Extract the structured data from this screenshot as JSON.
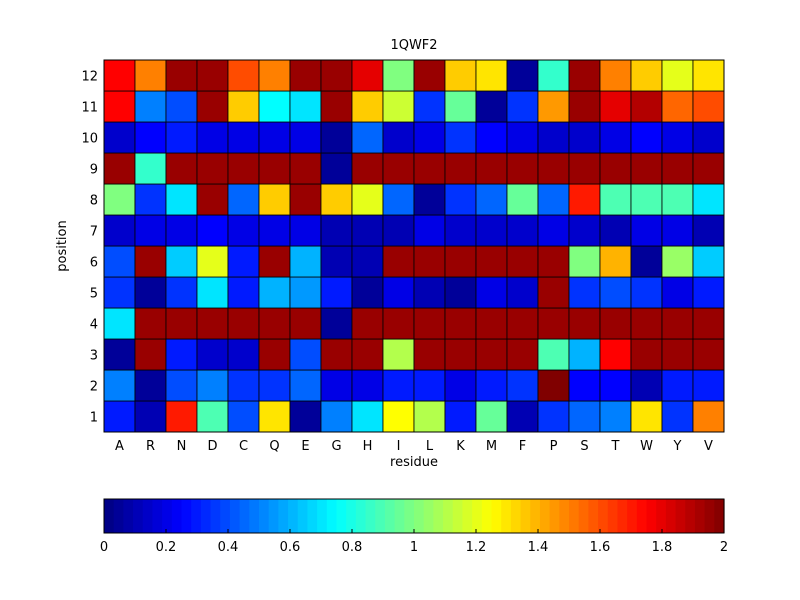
{
  "chart_data": {
    "type": "heatmap",
    "title": "1QWF2",
    "xlabel": "residue",
    "ylabel": "position",
    "x_categories": [
      "A",
      "R",
      "N",
      "D",
      "C",
      "Q",
      "E",
      "G",
      "H",
      "I",
      "L",
      "K",
      "M",
      "F",
      "P",
      "S",
      "T",
      "W",
      "Y",
      "V"
    ],
    "y_categories": [
      "1",
      "2",
      "3",
      "4",
      "5",
      "6",
      "7",
      "8",
      "9",
      "10",
      "11",
      "12"
    ],
    "colorbar": {
      "range": [
        0,
        2
      ],
      "ticks": [
        "0",
        "0.2",
        "0.4",
        "0.6",
        "0.8",
        "1",
        "1.2",
        "1.4",
        "1.6",
        "1.8",
        "2"
      ]
    },
    "colormap": "jet",
    "values": [
      [
        0.3,
        0.1,
        1.7,
        0.9,
        0.4,
        1.3,
        0.05,
        0.5,
        0.7,
        1.25,
        1.1,
        0.3,
        0.95,
        0.1,
        0.35,
        0.45,
        0.5,
        1.3,
        0.35,
        1.5
      ],
      [
        0.5,
        0.05,
        0.4,
        0.5,
        0.35,
        0.35,
        0.45,
        0.2,
        0.2,
        0.3,
        0.3,
        0.2,
        0.3,
        0.35,
        2.0,
        0.25,
        0.25,
        0.1,
        0.3,
        0.3
      ],
      [
        0.05,
        1.95,
        0.3,
        0.15,
        0.15,
        1.95,
        0.4,
        1.95,
        1.95,
        1.1,
        1.95,
        1.95,
        1.95,
        1.95,
        0.9,
        0.6,
        1.75,
        1.95,
        1.95,
        1.95
      ],
      [
        0.7,
        1.95,
        1.95,
        1.95,
        1.95,
        1.95,
        1.95,
        0.05,
        1.95,
        1.95,
        1.95,
        1.95,
        1.95,
        1.95,
        1.95,
        1.95,
        1.95,
        1.95,
        1.95,
        1.95
      ],
      [
        0.35,
        0.05,
        0.35,
        0.7,
        0.3,
        0.6,
        0.55,
        0.3,
        0.05,
        0.2,
        0.1,
        0.05,
        0.2,
        0.15,
        1.95,
        0.35,
        0.4,
        0.35,
        0.2,
        0.3
      ],
      [
        0.4,
        1.95,
        0.65,
        1.2,
        0.3,
        1.95,
        0.6,
        0.1,
        0.1,
        1.95,
        1.95,
        1.95,
        1.95,
        1.95,
        1.95,
        1.0,
        1.4,
        0.05,
        1.05,
        0.65
      ],
      [
        0.15,
        0.2,
        0.2,
        0.25,
        0.2,
        0.2,
        0.2,
        0.1,
        0.1,
        0.1,
        0.2,
        0.15,
        0.15,
        0.15,
        0.2,
        0.15,
        0.1,
        0.2,
        0.2,
        0.1
      ],
      [
        1.0,
        0.35,
        0.7,
        1.95,
        0.45,
        1.35,
        1.95,
        1.35,
        1.2,
        0.45,
        0.05,
        0.35,
        0.45,
        0.95,
        0.45,
        1.7,
        0.9,
        0.9,
        0.9,
        0.7
      ],
      [
        1.95,
        0.85,
        1.95,
        1.95,
        1.95,
        1.95,
        1.95,
        0.05,
        1.95,
        1.95,
        1.95,
        1.95,
        1.95,
        1.95,
        1.95,
        1.95,
        1.95,
        1.95,
        1.95,
        1.95
      ],
      [
        0.15,
        0.25,
        0.3,
        0.2,
        0.2,
        0.2,
        0.2,
        0.05,
        0.45,
        0.15,
        0.2,
        0.35,
        0.25,
        0.2,
        0.15,
        0.15,
        0.2,
        0.25,
        0.2,
        0.15
      ],
      [
        1.75,
        0.5,
        0.4,
        1.95,
        1.35,
        0.75,
        0.7,
        1.95,
        1.35,
        1.15,
        0.35,
        0.95,
        0.05,
        0.35,
        1.45,
        1.95,
        1.8,
        1.9,
        1.55,
        1.6
      ],
      [
        1.75,
        1.5,
        1.95,
        1.95,
        1.6,
        1.5,
        1.95,
        1.95,
        1.8,
        1.0,
        1.95,
        1.35,
        1.3,
        0.05,
        0.85,
        1.95,
        1.5,
        1.35,
        1.2,
        1.3
      ]
    ]
  }
}
